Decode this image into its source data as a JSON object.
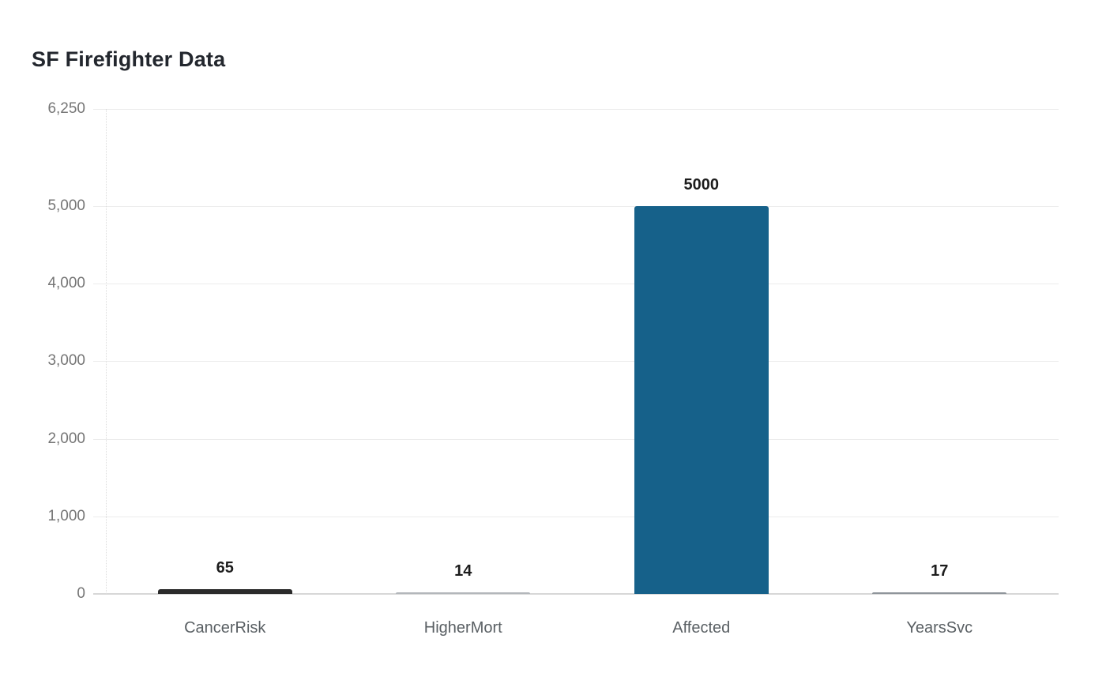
{
  "chart_data": {
    "type": "bar",
    "title": "SF Firefighter Data",
    "categories": [
      "CancerRisk",
      "HigherMort",
      "Affected",
      "YearsSvc"
    ],
    "values": [
      65,
      14,
      5000,
      17
    ],
    "value_labels": [
      "65",
      "14",
      "5000",
      "17"
    ],
    "series": [
      {
        "name": "SF Firefighter Data",
        "values": [
          65,
          14,
          5000,
          17
        ]
      }
    ],
    "bar_colors": [
      "#2b2b2b",
      "#b3b7bb",
      "#16618a",
      "#8f959b"
    ],
    "bar_patterns": [
      "checker",
      "solid",
      "solid",
      "solid"
    ],
    "xlabel": "",
    "ylabel": "",
    "ylim": [
      0,
      6250
    ],
    "yticks": [
      0,
      1000,
      2000,
      3000,
      4000,
      5000,
      6250
    ],
    "ytick_labels": [
      "0",
      "1,000",
      "2,000",
      "3,000",
      "4,000",
      "5,000",
      "6,250"
    ],
    "grid": true,
    "legend": false,
    "background": "#ffffff",
    "title_color": "#23272e",
    "axis_label_color": "#757575",
    "category_label_color": "#595f63",
    "value_label_color": "#1c1c1c"
  }
}
